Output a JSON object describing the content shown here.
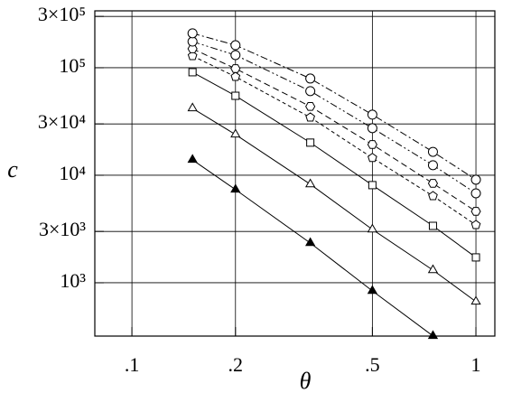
{
  "chart_data": {
    "type": "line",
    "xlabel": "θ",
    "ylabel": "c",
    "xlog": true,
    "ylog": true,
    "grid": true,
    "color": "#000000",
    "x": [
      0.15,
      0.2,
      0.33,
      0.5,
      0.75,
      1
    ],
    "xlim": [
      0.078,
      1.135
    ],
    "xticks": [
      {
        "value": 0.1,
        "label": ".1"
      },
      {
        "value": 0.2,
        "label": ".2"
      },
      {
        "value": 0.5,
        "label": ".5"
      },
      1
    ],
    "ylim": [
      319,
      338000
    ],
    "yticks": [
      {
        "value": 1000,
        "label": "10³"
      },
      {
        "value": 3000,
        "label": "3×10³"
      },
      {
        "value": 10000,
        "label": "10⁴"
      },
      {
        "value": 30000,
        "label": "3×10⁴"
      },
      {
        "value": 100000,
        "label": "10⁵"
      },
      {
        "value": 300000,
        "label": "3×10⁵"
      }
    ],
    "series": [
      {
        "marker": "triangle-filled",
        "dash": "solid",
        "values": [
          13900,
          7350,
          2340,
          840,
          320,
          null
        ]
      },
      {
        "marker": "triangle",
        "dash": "solid",
        "values": [
          41900,
          23900,
          8240,
          3130,
          1310,
          667
        ]
      },
      {
        "marker": "square",
        "dash": "solid",
        "values": [
          90800,
          54800,
          20100,
          8090,
          3380,
          1720
        ]
      },
      {
        "marker": "pentagon",
        "dash": "short-dash",
        "values": [
          128600,
          82400,
          34500,
          14500,
          6410,
          3450
        ]
      },
      {
        "marker": "hexagon",
        "dash": "dash",
        "values": [
          150000,
          98100,
          43600,
          19300,
          8400,
          4610
        ]
      },
      {
        "marker": "circle",
        "dash": "dash-dot-dot",
        "values": [
          175000,
          131000,
          60600,
          27400,
          12400,
          6790
        ]
      },
      {
        "marker": "circle",
        "dash": "dash-dot",
        "values": [
          209000,
          162000,
          79300,
          36600,
          16500,
          9080
        ]
      }
    ]
  }
}
